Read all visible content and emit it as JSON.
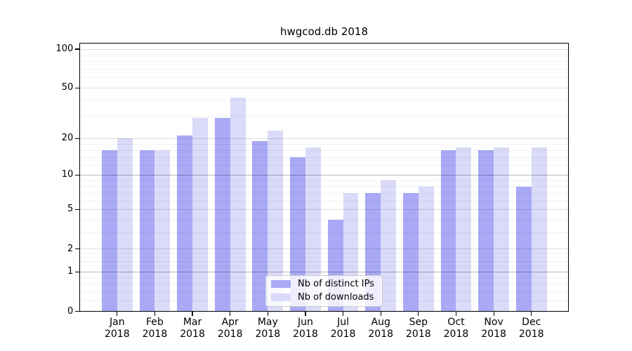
{
  "figure": {
    "background": "#ffffff"
  },
  "chart_data": {
    "type": "bar",
    "title": "hwgcod.db 2018",
    "categories": [
      "Jan 2018",
      "Feb 2018",
      "Mar 2018",
      "Apr 2018",
      "May 2018",
      "Jun 2018",
      "Jul 2018",
      "Aug 2018",
      "Sep 2018",
      "Oct 2018",
      "Nov 2018",
      "Dec 2018"
    ],
    "series": [
      {
        "name": "Nb of distinct IPs",
        "color": "#a9a9f6",
        "values": [
          16,
          16,
          21,
          29,
          19,
          14,
          4,
          7,
          7,
          16,
          16,
          8
        ]
      },
      {
        "name": "Nb of downloads",
        "color": "#dadaf9",
        "values": [
          20,
          16,
          29,
          42,
          23,
          17,
          7,
          9,
          8,
          17,
          17,
          17
        ]
      }
    ],
    "xlabel": "",
    "ylabel": "",
    "yscale": "log1p",
    "ylim": [
      0,
      100
    ],
    "y_major_ticks": [
      0,
      1,
      2,
      5,
      10,
      20,
      50,
      100
    ],
    "y_emphasized_gridlines": [
      1,
      10
    ],
    "y_minor_gridlines": [
      0.2,
      0.4,
      0.6,
      0.8,
      1.2,
      1.4,
      1.6,
      1.8,
      3,
      4,
      6,
      7,
      8,
      9,
      12,
      14,
      16,
      18,
      30,
      40,
      60,
      70,
      80,
      90
    ],
    "grid": true,
    "legend_position": "bottom-center"
  },
  "colors": {
    "spine": "#000000",
    "tick_label": "#000000",
    "grid_minor": "rgba(0,0,0,0.05)",
    "grid_major": "rgba(0,0,0,0.13)",
    "grid_emphasized": "rgba(0,0,0,0.28)",
    "legend_border": "#cccccc",
    "legend_background": "rgba(255,255,255,0.8)"
  }
}
